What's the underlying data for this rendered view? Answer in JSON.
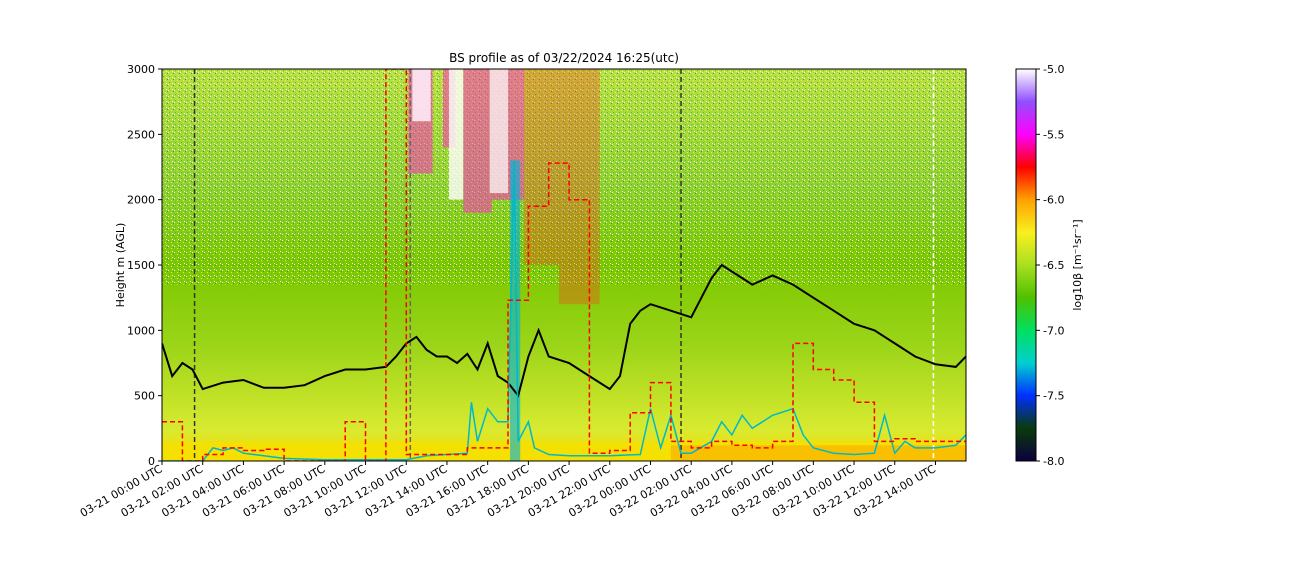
{
  "chart_data": {
    "type": "heatmap",
    "title": "BS profile as of 03/22/2024 16:25(utc)",
    "ylabel": "Height m (AGL)",
    "xlabel": "",
    "x_range_hours": [
      0,
      39.5
    ],
    "ylim": [
      0,
      3000
    ],
    "y_ticks": [
      "0",
      "500",
      "1000",
      "1500",
      "2000",
      "2500",
      "3000"
    ],
    "y_tick_values": [
      0,
      500,
      1000,
      1500,
      2000,
      2500,
      3000
    ],
    "x_ticks": [
      "03-21 00:00 UTC",
      "03-21 02:00 UTC",
      "03-21 04:00 UTC",
      "03-21 06:00 UTC",
      "03-21 08:00 UTC",
      "03-21 10:00 UTC",
      "03-21 12:00 UTC",
      "03-21 14:00 UTC",
      "03-21 16:00 UTC",
      "03-21 18:00 UTC",
      "03-21 20:00 UTC",
      "03-21 22:00 UTC",
      "03-22 00:00 UTC",
      "03-22 02:00 UTC",
      "03-22 04:00 UTC",
      "03-22 06:00 UTC",
      "03-22 08:00 UTC",
      "03-22 10:00 UTC",
      "03-22 12:00 UTC",
      "03-22 14:00 UTC"
    ],
    "x_tick_hours": [
      0,
      2,
      4,
      6,
      8,
      10,
      12,
      14,
      16,
      18,
      20,
      22,
      24,
      26,
      28,
      30,
      32,
      34,
      36,
      38
    ],
    "colorbar": {
      "label": "log10β [m⁻¹sr⁻¹]",
      "range": [
        -8.0,
        -5.0
      ],
      "ticks": [
        "-5.0",
        "-5.5",
        "-6.0",
        "-6.5",
        "-7.0",
        "-7.5",
        "-8.0"
      ],
      "tick_values": [
        -5.0,
        -5.5,
        -6.0,
        -6.5,
        -7.0,
        -7.5,
        -8.0
      ],
      "colors": [
        "#0b0040",
        "#0a3a0a",
        "#0030ff",
        "#00d0d0",
        "#00e060",
        "#50c000",
        "#a8e020",
        "#f8f020",
        "#ffa000",
        "#ff0000",
        "#ff00ff",
        "#9050ff",
        "#ffffff"
      ]
    },
    "series": [
      {
        "name": "",
        "color": "#000000",
        "style": "solid",
        "x": [
          0,
          0.5,
          1,
          1.5,
          2,
          3,
          4,
          5,
          6,
          7,
          8,
          9,
          10,
          11,
          11.5,
          12,
          12.5,
          13,
          13.5,
          14,
          14.5,
          15,
          15.5,
          16,
          16.5,
          17,
          17.5,
          18,
          18.5,
          19,
          20,
          21,
          22,
          22.5,
          23,
          23.5,
          24,
          25,
          26,
          26.5,
          27,
          27.5,
          28,
          29,
          30,
          31,
          32,
          33,
          34,
          35,
          36,
          37,
          38,
          39,
          39.5
        ],
        "y": [
          900,
          650,
          750,
          700,
          550,
          600,
          620,
          560,
          560,
          580,
          650,
          700,
          700,
          720,
          800,
          900,
          950,
          850,
          800,
          800,
          750,
          820,
          700,
          900,
          650,
          600,
          500,
          800,
          1000,
          800,
          750,
          650,
          550,
          650,
          1050,
          1150,
          1200,
          1150,
          1100,
          1250,
          1400,
          1500,
          1450,
          1350,
          1420,
          1350,
          1250,
          1150,
          1050,
          1000,
          900,
          800,
          740,
          720,
          800
        ]
      },
      {
        "name": "",
        "color": "#00b8c8",
        "style": "solid",
        "x": [
          0,
          2,
          2.5,
          3,
          3.5,
          4,
          6,
          8,
          10,
          12,
          13,
          14,
          15,
          15.2,
          15.5,
          16,
          16.5,
          17,
          17.3,
          17.5,
          18,
          18.3,
          19,
          20,
          22,
          23.5,
          24,
          24.5,
          25,
          25.5,
          26,
          27,
          27.5,
          28,
          28.5,
          29,
          30,
          31,
          31.5,
          32,
          33,
          34,
          35,
          35.5,
          36,
          36.5,
          37,
          38,
          39,
          39.5
        ],
        "y": [
          0,
          0,
          100,
          80,
          100,
          60,
          20,
          10,
          10,
          10,
          40,
          50,
          60,
          450,
          150,
          400,
          300,
          300,
          2300,
          150,
          300,
          100,
          50,
          40,
          40,
          50,
          400,
          100,
          350,
          60,
          60,
          150,
          300,
          200,
          350,
          250,
          350,
          400,
          200,
          100,
          60,
          50,
          60,
          350,
          60,
          150,
          100,
          100,
          120,
          200
        ]
      },
      {
        "name": "",
        "color": "#ff0000",
        "style": "dashed",
        "x": [
          0,
          1,
          1,
          2,
          2,
          3,
          3,
          4,
          4,
          5,
          5,
          6,
          6,
          7,
          7,
          8,
          8,
          9,
          9,
          10,
          10,
          11,
          11,
          12,
          12,
          13,
          13,
          14,
          14,
          15,
          15,
          16,
          16,
          17,
          17,
          18,
          18,
          19,
          19,
          20,
          20,
          21,
          21,
          22,
          22,
          23,
          23,
          24,
          24,
          25,
          25,
          26,
          26,
          27,
          27,
          28,
          28,
          29,
          29,
          30,
          30,
          31,
          31,
          32,
          32,
          33,
          33,
          34,
          34,
          35,
          35,
          36,
          36,
          37,
          37,
          38,
          38,
          39,
          39,
          39.5
        ],
        "y": [
          300,
          300,
          0,
          0,
          50,
          50,
          100,
          100,
          80,
          80,
          90,
          90,
          0,
          0,
          0,
          0,
          0,
          0,
          300,
          300,
          0,
          0,
          3000,
          3000,
          50,
          50,
          50,
          50,
          50,
          50,
          100,
          100,
          100,
          100,
          1230,
          1230,
          1950,
          1950,
          2280,
          2280,
          2000,
          2000,
          60,
          60,
          80,
          80,
          370,
          370,
          600,
          600,
          150,
          150,
          100,
          100,
          150,
          150,
          120,
          120,
          100,
          100,
          150,
          150,
          900,
          900,
          700,
          700,
          620,
          620,
          450,
          450,
          150,
          150,
          170,
          170,
          150,
          150,
          150,
          150,
          150,
          150
        ]
      }
    ],
    "vertical_lines": [
      {
        "x": 1.6,
        "color": "#333333",
        "style": "dashed"
      },
      {
        "x": 12.2,
        "color": "#666666",
        "style": "dashed"
      },
      {
        "x": 25.5,
        "color": "#333333",
        "style": "dashed"
      },
      {
        "x": 37.9,
        "color": "#ffffff",
        "style": "dashed"
      }
    ],
    "grid": false,
    "legend": "none"
  }
}
